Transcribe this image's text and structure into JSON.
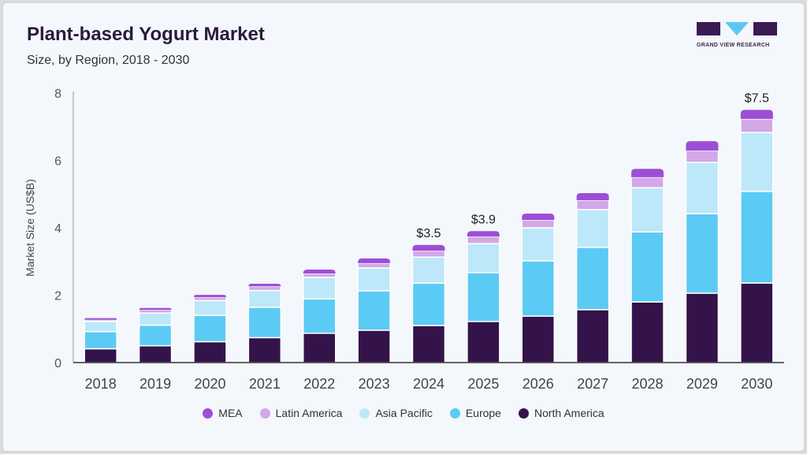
{
  "header": {
    "title": "Plant-based Yogurt Market",
    "subtitle": "Size, by Region, 2018 - 2030"
  },
  "logo": {
    "text": "GRAND VIEW RESEARCH"
  },
  "chart_data": {
    "type": "bar",
    "stacked": true,
    "title": "Plant-based Yogurt Market",
    "subtitle": "Size, by Region, 2018 - 2030",
    "xlabel": "",
    "ylabel": "Market Size (US$B)",
    "ylim": [
      0,
      8
    ],
    "yticks": [
      "0",
      "2",
      "4",
      "6",
      "8"
    ],
    "categories": [
      "2018",
      "2019",
      "2020",
      "2021",
      "2022",
      "2023",
      "2024",
      "2025",
      "2026",
      "2027",
      "2028",
      "2029",
      "2030"
    ],
    "series": [
      {
        "name": "North America",
        "color": "#33134a",
        "values": [
          0.41,
          0.5,
          0.62,
          0.74,
          0.87,
          0.96,
          1.1,
          1.22,
          1.38,
          1.57,
          1.8,
          2.06,
          2.36
        ]
      },
      {
        "name": "Europe",
        "color": "#5bcbf5",
        "values": [
          0.51,
          0.61,
          0.78,
          0.9,
          1.02,
          1.17,
          1.26,
          1.45,
          1.64,
          1.85,
          2.08,
          2.36,
          2.72
        ]
      },
      {
        "name": "Asia Pacific",
        "color": "#bde8f9",
        "values": [
          0.3,
          0.36,
          0.44,
          0.5,
          0.64,
          0.68,
          0.77,
          0.86,
          0.98,
          1.12,
          1.31,
          1.52,
          1.75
        ]
      },
      {
        "name": "Latin America",
        "color": "#d2a8e8",
        "values": [
          0.05,
          0.09,
          0.1,
          0.12,
          0.11,
          0.14,
          0.19,
          0.21,
          0.23,
          0.28,
          0.31,
          0.35,
          0.4
        ]
      },
      {
        "name": "MEA",
        "color": "#9c4fd6",
        "values": [
          0.05,
          0.06,
          0.07,
          0.08,
          0.12,
          0.14,
          0.17,
          0.16,
          0.19,
          0.21,
          0.25,
          0.28,
          0.27
        ]
      }
    ],
    "annotations": [
      {
        "category": "2024",
        "label": "$3.5"
      },
      {
        "category": "2025",
        "label": "$3.9"
      },
      {
        "category": "2030",
        "label": "$7.5"
      }
    ],
    "legend_order": [
      "MEA",
      "Latin America",
      "Asia Pacific",
      "Europe",
      "North America"
    ],
    "legend_position": "bottom",
    "grid": false
  }
}
